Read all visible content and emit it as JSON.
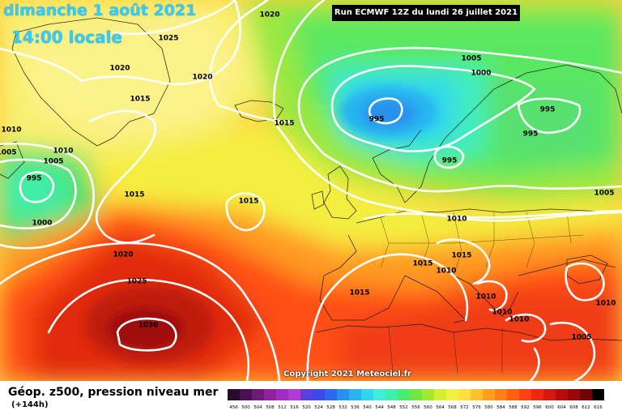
{
  "header": {
    "date": "dimanche 1 août 2021",
    "time": "14:00 locale",
    "run": "Run ECMWF 12Z du lundi 26 juillet 2021"
  },
  "copyright": "Copyright 2021 Meteociel.fr",
  "legend": {
    "title": "Géop. z500, pression niveau mer",
    "subtitle": "(+144h)",
    "ticks": [
      "456",
      "500",
      "504",
      "508",
      "512",
      "516",
      "520",
      "524",
      "528",
      "532",
      "536",
      "540",
      "544",
      "548",
      "552",
      "556",
      "560",
      "564",
      "568",
      "572",
      "576",
      "580",
      "584",
      "588",
      "592",
      "596",
      "600",
      "604",
      "608",
      "612",
      "616"
    ],
    "colors": [
      "#2a0a2a",
      "#4a1050",
      "#701a78",
      "#8e22a0",
      "#a42cc0",
      "#b43ad8",
      "#5a40d8",
      "#3a4ae8",
      "#2a6aee",
      "#2a90ee",
      "#28b4f0",
      "#30d6ee",
      "#40eed8",
      "#40f0a8",
      "#48ec70",
      "#70e840",
      "#a4e830",
      "#d4ee30",
      "#f4f040",
      "#ffe040",
      "#ffc030",
      "#ffa020",
      "#ff8018",
      "#ff6010",
      "#ff4010",
      "#f02810",
      "#d81810",
      "#b80c0c",
      "#980808",
      "#700404",
      "#000000"
    ]
  },
  "pressure_labels": [
    {
      "text": "1020",
      "name": "isobar-label-1020-north"
    },
    {
      "text": "1025",
      "name": "isobar-label-1025-north"
    },
    {
      "text": "1020",
      "name": "isobar-label-1020-greenland"
    },
    {
      "text": "1020",
      "name": "isobar-label-1020-greenland-east"
    },
    {
      "text": "1015",
      "name": "isobar-label-1015-greenland"
    },
    {
      "text": "1015",
      "name": "isobar-label-1015-atlantic-north"
    },
    {
      "text": "1005",
      "name": "isobar-label-1005-scandinavia"
    },
    {
      "text": "1000",
      "name": "isobar-label-1000-scandinavia"
    },
    {
      "text": "995",
      "name": "isobar-label-995-low-centre"
    },
    {
      "text": "995",
      "name": "isobar-label-995-finland"
    },
    {
      "text": "995",
      "name": "isobar-label-995-russia"
    },
    {
      "text": "995",
      "name": "isobar-label-995-baltic"
    },
    {
      "text": "1010",
      "name": "isobar-label-1010-west-edge"
    },
    {
      "text": "1005",
      "name": "isobar-label-1005-west-edge"
    },
    {
      "text": "1010",
      "name": "isobar-label-1010-labrador"
    },
    {
      "text": "1005",
      "name": "isobar-label-1005-labrador"
    },
    {
      "text": "995",
      "name": "isobar-label-995-west-low"
    },
    {
      "text": "1000",
      "name": "isobar-label-1000-west-low"
    },
    {
      "text": "1015",
      "name": "isobar-label-1015-atlantic-west"
    },
    {
      "text": "1015",
      "name": "isobar-label-1015-atlantic-mid"
    },
    {
      "text": "1005",
      "name": "isobar-label-1005-east"
    },
    {
      "text": "1010",
      "name": "isobar-label-1010-central-europe"
    },
    {
      "text": "1020",
      "name": "isobar-label-1020-azores"
    },
    {
      "text": "1025",
      "name": "isobar-label-1025-azores"
    },
    {
      "text": "1030",
      "name": "isobar-label-1030-high-centre"
    },
    {
      "text": "1015",
      "name": "isobar-label-1015-france"
    },
    {
      "text": "1010",
      "name": "isobar-label-1010-alps"
    },
    {
      "text": "1015",
      "name": "isobar-label-1015-italy-north"
    },
    {
      "text": "1015",
      "name": "isobar-label-1015-iberia"
    },
    {
      "text": "1010",
      "name": "isobar-label-1010-italy-south"
    },
    {
      "text": "1010",
      "name": "isobar-label-1010-greece"
    },
    {
      "text": "1010",
      "name": "isobar-label-1010-aegean"
    },
    {
      "text": "1010",
      "name": "isobar-label-1010-turkey"
    },
    {
      "text": "1005",
      "name": "isobar-label-1005-levant"
    }
  ]
}
